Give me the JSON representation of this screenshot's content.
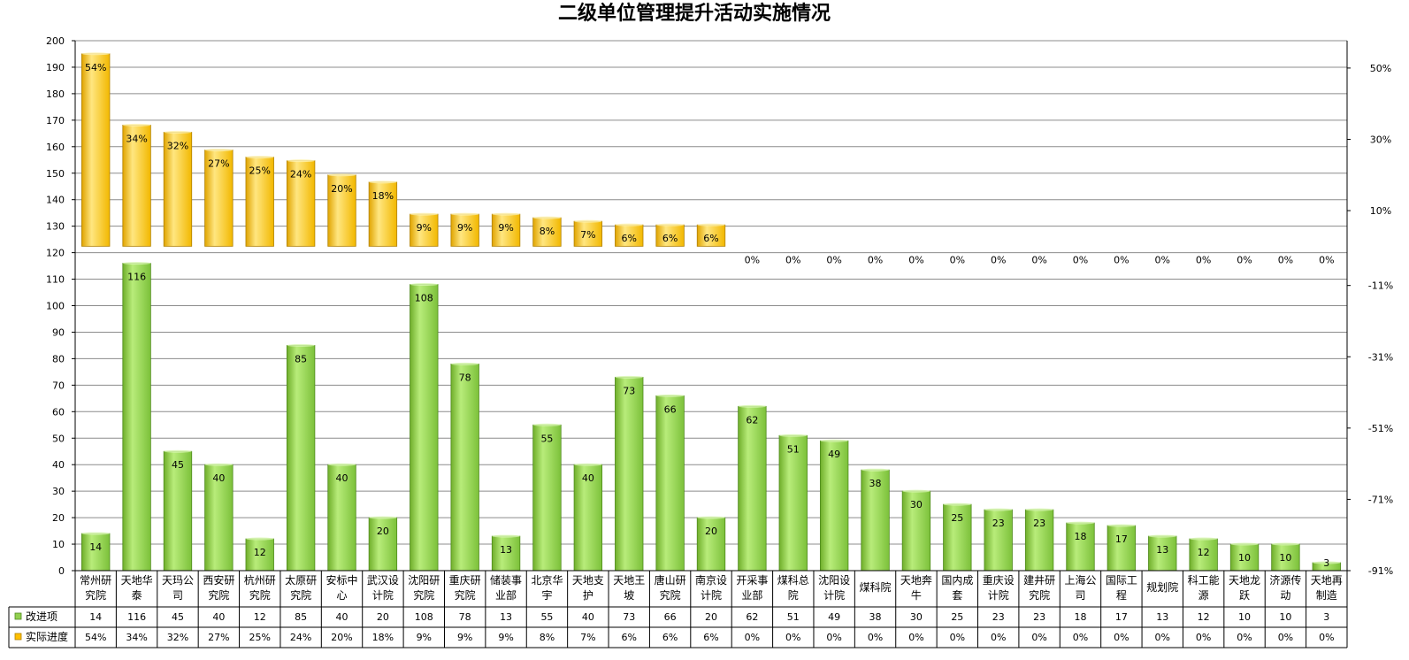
{
  "chart_data": {
    "type": "bar",
    "title": "二级单位管理提升活动实施情况",
    "categories": [
      [
        "常州研",
        "究院"
      ],
      [
        "天地华",
        "泰"
      ],
      [
        "天玛公",
        "司"
      ],
      [
        "西安研",
        "究院"
      ],
      [
        "杭州研",
        "究院"
      ],
      [
        "太原研",
        "究院"
      ],
      [
        "安标中",
        "心"
      ],
      [
        "武汉设",
        "计院"
      ],
      [
        "沈阳研",
        "究院"
      ],
      [
        "重庆研",
        "究院"
      ],
      [
        "储装事",
        "业部"
      ],
      [
        "北京华",
        "宇"
      ],
      [
        "天地支",
        "护"
      ],
      [
        "天地王",
        "坡"
      ],
      [
        "唐山研",
        "究院"
      ],
      [
        "南京设",
        "计院"
      ],
      [
        "开采事",
        "业部"
      ],
      [
        "煤科总",
        "院"
      ],
      [
        "沈阳设",
        "计院"
      ],
      [
        "煤科院"
      ],
      [
        "天地奔",
        "牛"
      ],
      [
        "国内成",
        "套"
      ],
      [
        "重庆设",
        "计院"
      ],
      [
        "建井研",
        "究院"
      ],
      [
        "上海公",
        "司"
      ],
      [
        "国际工",
        "程"
      ],
      [
        "规划院"
      ],
      [
        "科工能",
        "源"
      ],
      [
        "天地龙",
        "跃"
      ],
      [
        "济源传",
        "动"
      ],
      [
        "天地再",
        "制造"
      ]
    ],
    "series": [
      {
        "name": "改进项",
        "color": "#92d050",
        "axis": "left",
        "values": [
          14,
          116,
          45,
          40,
          12,
          85,
          40,
          20,
          108,
          78,
          13,
          55,
          40,
          73,
          66,
          20,
          62,
          51,
          49,
          38,
          30,
          25,
          23,
          23,
          18,
          17,
          13,
          12,
          10,
          10,
          3
        ],
        "labels": [
          "14",
          "116",
          "45",
          "40",
          "12",
          "85",
          "40",
          "20",
          "108",
          "78",
          "13",
          "55",
          "40",
          "73",
          "66",
          "20",
          "62",
          "51",
          "49",
          "38",
          "30",
          "25",
          "23",
          "23",
          "18",
          "17",
          "13",
          "12",
          "10",
          "10",
          "3"
        ]
      },
      {
        "name": "实际进度",
        "color": "#ffc000",
        "axis": "right",
        "values": [
          54,
          34,
          32,
          27,
          25,
          24,
          20,
          18,
          9,
          9,
          9,
          8,
          7,
          6,
          6,
          6,
          0,
          0,
          0,
          0,
          0,
          0,
          0,
          0,
          0,
          0,
          0,
          0,
          0,
          0,
          0
        ],
        "labels": [
          "54%",
          "34%",
          "32%",
          "27%",
          "25%",
          "24%",
          "20%",
          "18%",
          "9%",
          "9%",
          "9%",
          "8%",
          "7%",
          "6%",
          "6%",
          "6%",
          "0%",
          "0%",
          "0%",
          "0%",
          "0%",
          "0%",
          "0%",
          "0%",
          "0%",
          "0%",
          "0%",
          "0%",
          "0%",
          "0%",
          "0%"
        ]
      }
    ],
    "left_axis": {
      "ylim": [
        0,
        200
      ],
      "ticks": [
        "0",
        "10",
        "20",
        "30",
        "40",
        "50",
        "60",
        "70",
        "80",
        "90",
        "100",
        "110",
        "120",
        "130",
        "140",
        "150",
        "160",
        "170",
        "180",
        "190",
        "200"
      ]
    },
    "right_axis": {
      "ylim": [
        -91,
        57.67
      ],
      "ticks": [
        "-91%",
        "-71%",
        "-51%",
        "-31%",
        "-11%",
        "10%",
        "30%",
        "50%"
      ],
      "tick_values": [
        -91,
        -71,
        -51,
        -31,
        -11,
        10,
        30,
        50
      ]
    },
    "grid": true,
    "legend": "data-table",
    "data_table": true
  }
}
